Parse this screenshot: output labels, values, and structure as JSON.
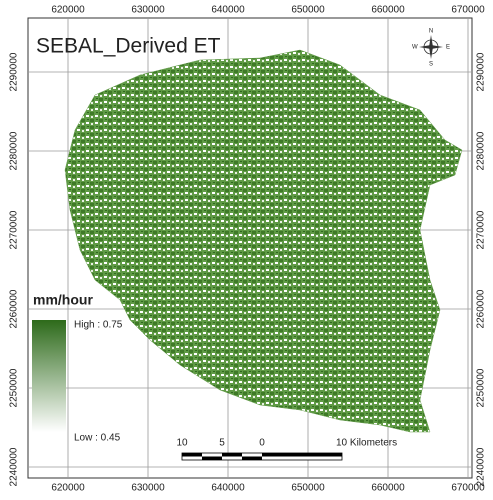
{
  "map": {
    "title": "SEBAL_Derived ET",
    "x_labels": [
      620000,
      630000,
      640000,
      650000,
      660000,
      670000
    ],
    "y_labels": [
      2290000,
      2280000,
      2270000,
      2260000,
      2250000,
      2240000
    ],
    "legend": {
      "title": "mm/hour",
      "high": "High : 0.75",
      "low": "Low : 0.45"
    },
    "scale_bar": [
      "10",
      "5",
      "0",
      "10 Kilometers"
    ],
    "north_arrow": [
      "N",
      "S",
      "E",
      "W"
    ]
  }
}
